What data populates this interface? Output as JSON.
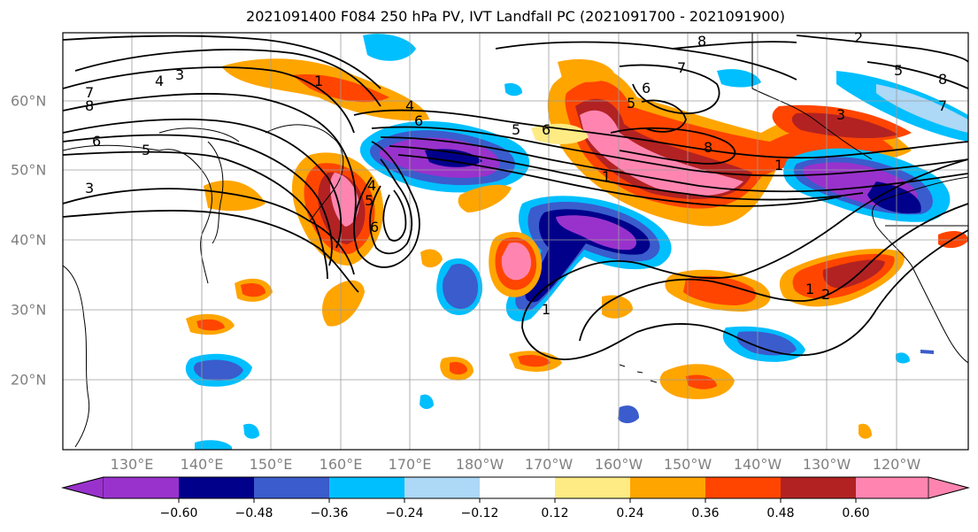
{
  "title": "2021091400 F084 250 hPa PV, IVT Landfall PC (2021091700 - 2021091900)",
  "map": {
    "lon_labels": [
      "130°E",
      "140°E",
      "150°E",
      "160°E",
      "170°E",
      "180°W",
      "170°W",
      "160°W",
      "150°W",
      "140°W",
      "130°W",
      "120°W"
    ],
    "lat_labels": [
      "60°N",
      "50°N",
      "40°N",
      "30°N",
      "20°N"
    ],
    "contour_labels": [
      "3",
      "4",
      "7",
      "8",
      "6",
      "5",
      "5",
      "3",
      "1",
      "4",
      "6",
      "8",
      "7",
      "5",
      "6",
      "6",
      "8",
      "3",
      "1",
      "1",
      "4",
      "5",
      "6",
      "1",
      "2",
      "1",
      "2",
      "8",
      "7",
      "5"
    ]
  },
  "colorbar": {
    "colors": [
      "#9932cc",
      "#00008b",
      "#3a5ccc",
      "#00bfff",
      "#add8f6",
      "#ffffff",
      "#ffeb84",
      "#ffa500",
      "#ff4500",
      "#b22222",
      "#ff85b0"
    ],
    "tick_labels": [
      "−0.60",
      "−0.48",
      "−0.36",
      "−0.24",
      "−0.12",
      "0.12",
      "0.24",
      "0.36",
      "0.48",
      "0.60"
    ]
  }
}
